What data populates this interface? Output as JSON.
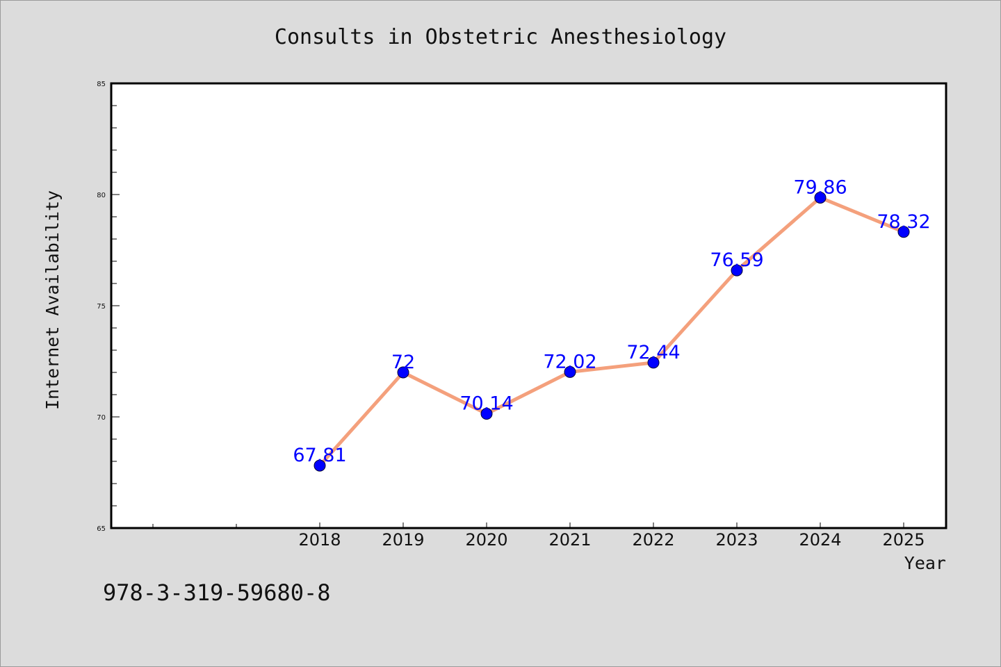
{
  "chart_data": {
    "type": "line",
    "title": "Consults in Obstetric Anesthesiology",
    "xlabel": "Year",
    "ylabel": "Internet Availability",
    "categories": [
      "2018",
      "2019",
      "2020",
      "2021",
      "2022",
      "2023",
      "2024",
      "2025"
    ],
    "values": [
      67.81,
      72,
      70.14,
      72.02,
      72.44,
      76.59,
      79.86,
      78.32
    ],
    "data_labels": [
      "67.81",
      "72",
      "70.14",
      "72.02",
      "72.44",
      "76.59",
      "79.86",
      "78.32"
    ],
    "ylim": [
      65,
      85
    ],
    "y_ticks": [
      "65",
      "70",
      "75",
      "80",
      "85"
    ],
    "grid": false,
    "legend": "none",
    "colors": {
      "line": "#f4a07c",
      "marker": "#0000ff",
      "data_label": "#0000ff",
      "background": "#dcdcdc",
      "plot_background": "#ffffff"
    }
  },
  "footnote": "978-3-319-59680-8"
}
